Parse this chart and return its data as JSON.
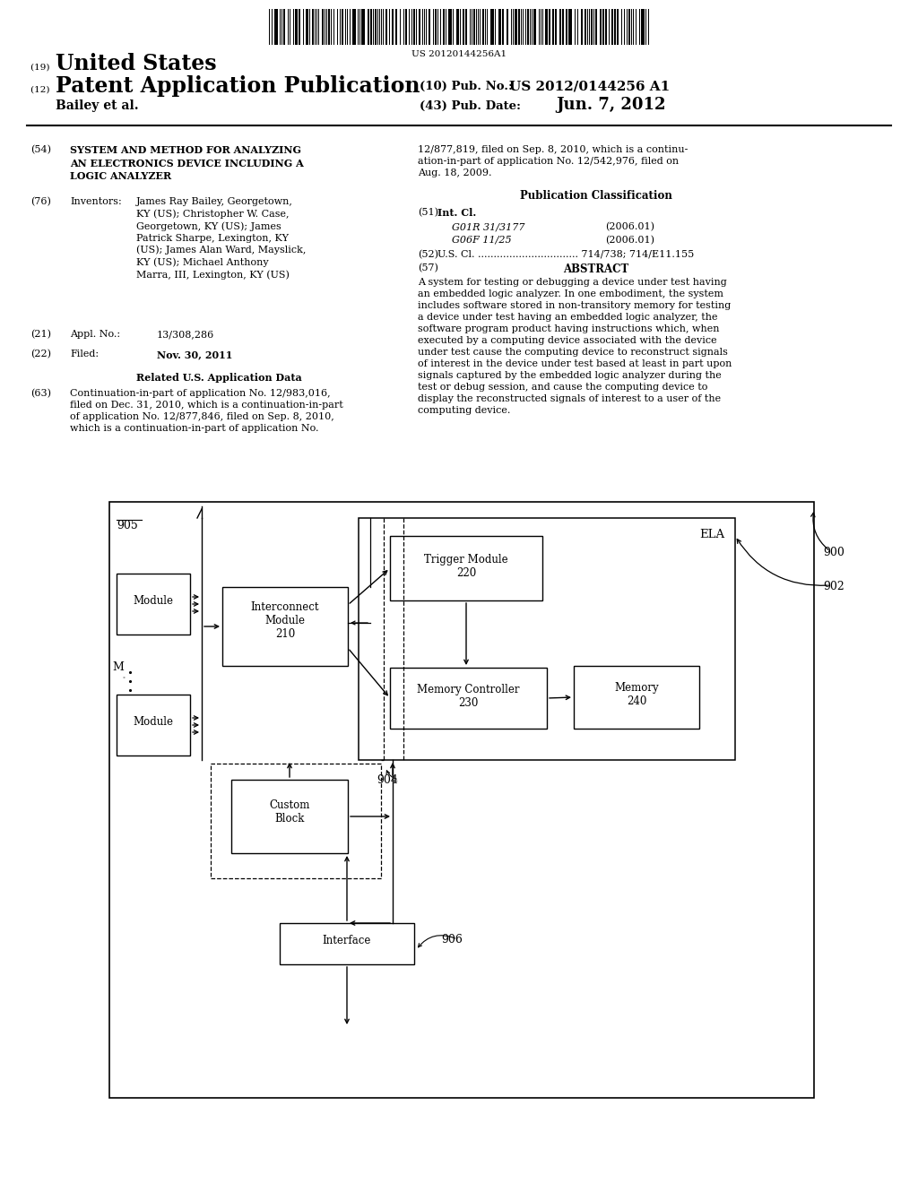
{
  "bg_color": "#ffffff",
  "barcode_text": "US 20120144256A1",
  "title_19": "(19) ",
  "title_us": "United States",
  "title_12": "(12) ",
  "title_pat": "Patent Application Publication",
  "title_10": "(10) Pub. No.:",
  "pub_no": "US 2012/0144256 A1",
  "title_43": "(43) Pub. Date:",
  "pub_date": "Jun. 7, 2012",
  "author": "Bailey et al.",
  "section54_label": "(54)",
  "section54_title": "SYSTEM AND METHOD FOR ANALYZING\nAN ELECTRONICS DEVICE INCLUDING A\nLOGIC ANALYZER",
  "section76_label": "(76)",
  "section76_title": "Inventors:",
  "section76_inventors_bold": "James Ray Bailey",
  "section76_text": "James Ray Bailey, Georgetown,\nKY (US); Christopher W. Case,\nGeorgetown, KY (US); James\nPatrick Sharpe, Lexington, KY\n(US); James Alan Ward, Mayslick,\nKY (US); Michael Anthony\nMarra, III, Lexington, KY (US)",
  "section21_label": "(21)",
  "section21_title": "Appl. No.:",
  "section21_val": "13/308,286",
  "section22_label": "(22)",
  "section22_title": "Filed:",
  "section22_val": "Nov. 30, 2011",
  "related_title": "Related U.S. Application Data",
  "section63_label": "(63)",
  "section63_text": "Continuation-in-part of application No. 12/983,016,\nfiled on Dec. 31, 2010, which is a continuation-in-part\nof application No. 12/877,846, filed on Sep. 8, 2010,\nwhich is a continuation-in-part of application No.",
  "right_continuation": "12/877,819, filed on Sep. 8, 2010, which is a continu-\nation-in-part of application No. 12/542,976, filed on\nAug. 18, 2009.",
  "pub_class_title": "Publication Classification",
  "section51_label": "(51)",
  "section51_title": "Int. Cl.",
  "section51_g01r": "G01R 31/3177",
  "section51_g01r_year": "(2006.01)",
  "section51_g06f": "G06F 11/25",
  "section51_g06f_year": "(2006.01)",
  "section52_label": "(52)",
  "section52_text": "U.S. Cl. ................................ 714/738; 714/E11.155",
  "section57_label": "(57)",
  "section57_title": "ABSTRACT",
  "abstract_text": "A system for testing or debugging a device under test having\nan embedded logic analyzer. In one embodiment, the system\nincludes software stored in non-transitory memory for testing\na device under test having an embedded logic analyzer, the\nsoftware program product having instructions which, when\nexecuted by a computing device associated with the device\nunder test cause the computing device to reconstruct signals\nof interest in the device under test based at least in part upon\nsignals captured by the embedded logic analyzer during the\ntest or debug session, and cause the computing device to\ndisplay the reconstructed signals of interest to a user of the\ncomputing device.",
  "diagram_label_905": "905",
  "diagram_label_900": "900",
  "diagram_label_902": "902",
  "diagram_label_904": "904",
  "diagram_label_906": "906",
  "diagram_label_ELA": "ELA",
  "diagram_label_M": "M",
  "box_module1": "Module",
  "box_module2": "Module",
  "box_interconnect": "Interconnect\nModule\n210",
  "box_trigger": "Trigger Module\n220",
  "box_memctrl": "Memory Controller\n230",
  "box_memory": "Memory\n240",
  "box_custom": "Custom\nBlock",
  "box_interface": "Interface"
}
